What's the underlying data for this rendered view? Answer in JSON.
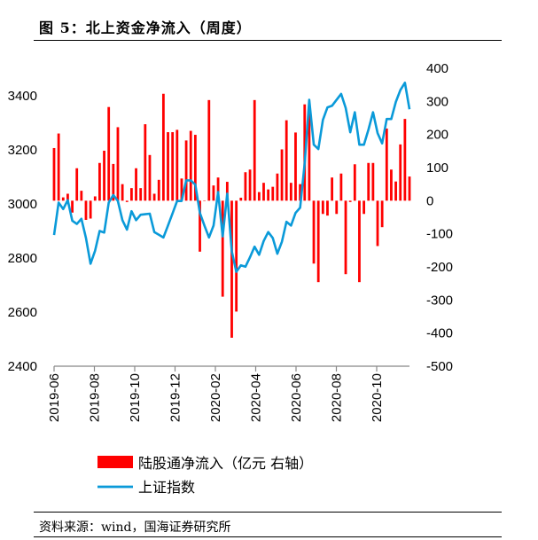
{
  "title": "图 5：北上资金净流入（周度）",
  "source": "资料来源：wind，国海证券研究所",
  "chart_data": {
    "type": "bar+line",
    "title": "图 5：北上资金净流入（周度）",
    "x_tick_labels": [
      "2019-06",
      "2019-08",
      "2019-10",
      "2019-12",
      "2020-02",
      "2020-04",
      "2020-06",
      "2020-08",
      "2020-10"
    ],
    "x_range": [
      "2019-06",
      "2020-11"
    ],
    "left_axis": {
      "ylim": [
        2400,
        3400
      ],
      "ticks": [
        2400,
        2600,
        2800,
        3000,
        3200,
        3400
      ]
    },
    "right_axis": {
      "ylim": [
        -500,
        400
      ],
      "ticks": [
        -500,
        -400,
        -300,
        -200,
        -100,
        0,
        100,
        200,
        300,
        400
      ]
    },
    "grid": false,
    "legend_position": "bottom",
    "series": [
      {
        "name": "陆股通净流入（亿元 右轴）",
        "type": "bar",
        "axis": "right",
        "color": "#ff0000",
        "values": [
          159,
          203,
          10,
          21,
          -36,
          98,
          30,
          -58,
          -54,
          13,
          114,
          151,
          283,
          111,
          222,
          50,
          -4,
          38,
          98,
          38,
          231,
          138,
          21,
          63,
          323,
          207,
          207,
          214,
          67,
          182,
          211,
          199,
          -154,
          0,
          304,
          46,
          70,
          -290,
          57,
          -414,
          -335,
          9,
          86,
          94,
          304,
          26,
          54,
          34,
          42,
          82,
          155,
          243,
          54,
          206,
          50,
          291,
          268,
          -190,
          -246,
          -40,
          -45,
          70,
          -40,
          82,
          -222,
          -4,
          110,
          -246,
          -40,
          114,
          114,
          -137,
          -80,
          218,
          94,
          58,
          170,
          247,
          73
        ]
      },
      {
        "name": "上证指数",
        "type": "line",
        "axis": "left",
        "color": "#0a9ad9",
        "values": [
          2885,
          3005,
          2981,
          3014,
          2938,
          2926,
          2945,
          2874,
          2779,
          2827,
          2900,
          2894,
          3005,
          3033,
          3011,
          2940,
          2905,
          2973,
          2940,
          2960,
          2962,
          2964,
          2896,
          2886,
          2876,
          2920,
          2965,
          3011,
          3011,
          3087,
          3087,
          3071,
          2967,
          2920,
          2876,
          2920,
          3044,
          2880,
          3038,
          2825,
          2749,
          2773,
          2768,
          2803,
          2842,
          2812,
          2863,
          2896,
          2874,
          2816,
          2860,
          2934,
          2920,
          2967,
          2986,
          3150,
          3385,
          3219,
          3203,
          3311,
          3357,
          3363,
          3385,
          3407,
          3355,
          3265,
          3339,
          3219,
          3219,
          3275,
          3339,
          3262,
          3224,
          3314,
          3314,
          3377,
          3421,
          3448,
          3350
        ]
      }
    ]
  }
}
